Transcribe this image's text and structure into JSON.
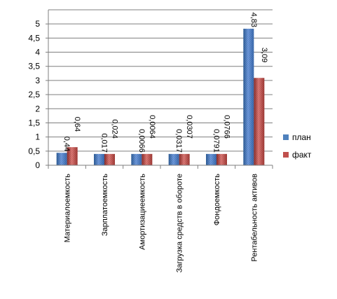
{
  "chart_data": {
    "type": "bar",
    "categories": [
      "Материалоемкость",
      "Зарплатоемкость",
      "Амортизациеемкость",
      "Загрузка средств в обороте",
      "Фондоемкость",
      "Рентабельность активов"
    ],
    "series": [
      {
        "name": "план",
        "values": [
          0.44,
          0.017,
          0.0066,
          0.0317,
          0.0791,
          4.83
        ],
        "labels": [
          "0,44",
          "0,017",
          "0,0066",
          "0,0317",
          "0,0791",
          "4,83"
        ],
        "color": "#4F81BD"
      },
      {
        "name": "факт",
        "values": [
          0.64,
          0.024,
          0.0064,
          0.0307,
          0.0766,
          3.09
        ],
        "labels": [
          "0,64",
          "0,024",
          "0,0064",
          "0,0307",
          "0,0766",
          "3,09"
        ],
        "color": "#C0504D"
      }
    ],
    "yticks": [
      "0",
      "0,5",
      "1",
      "1,5",
      "2",
      "2,5",
      "3",
      "3,5",
      "4",
      "4,5",
      "5"
    ],
    "ylim": [
      0,
      5.5
    ],
    "grid": true,
    "legend": "right",
    "xlabel": "",
    "ylabel": "",
    "title": ""
  }
}
